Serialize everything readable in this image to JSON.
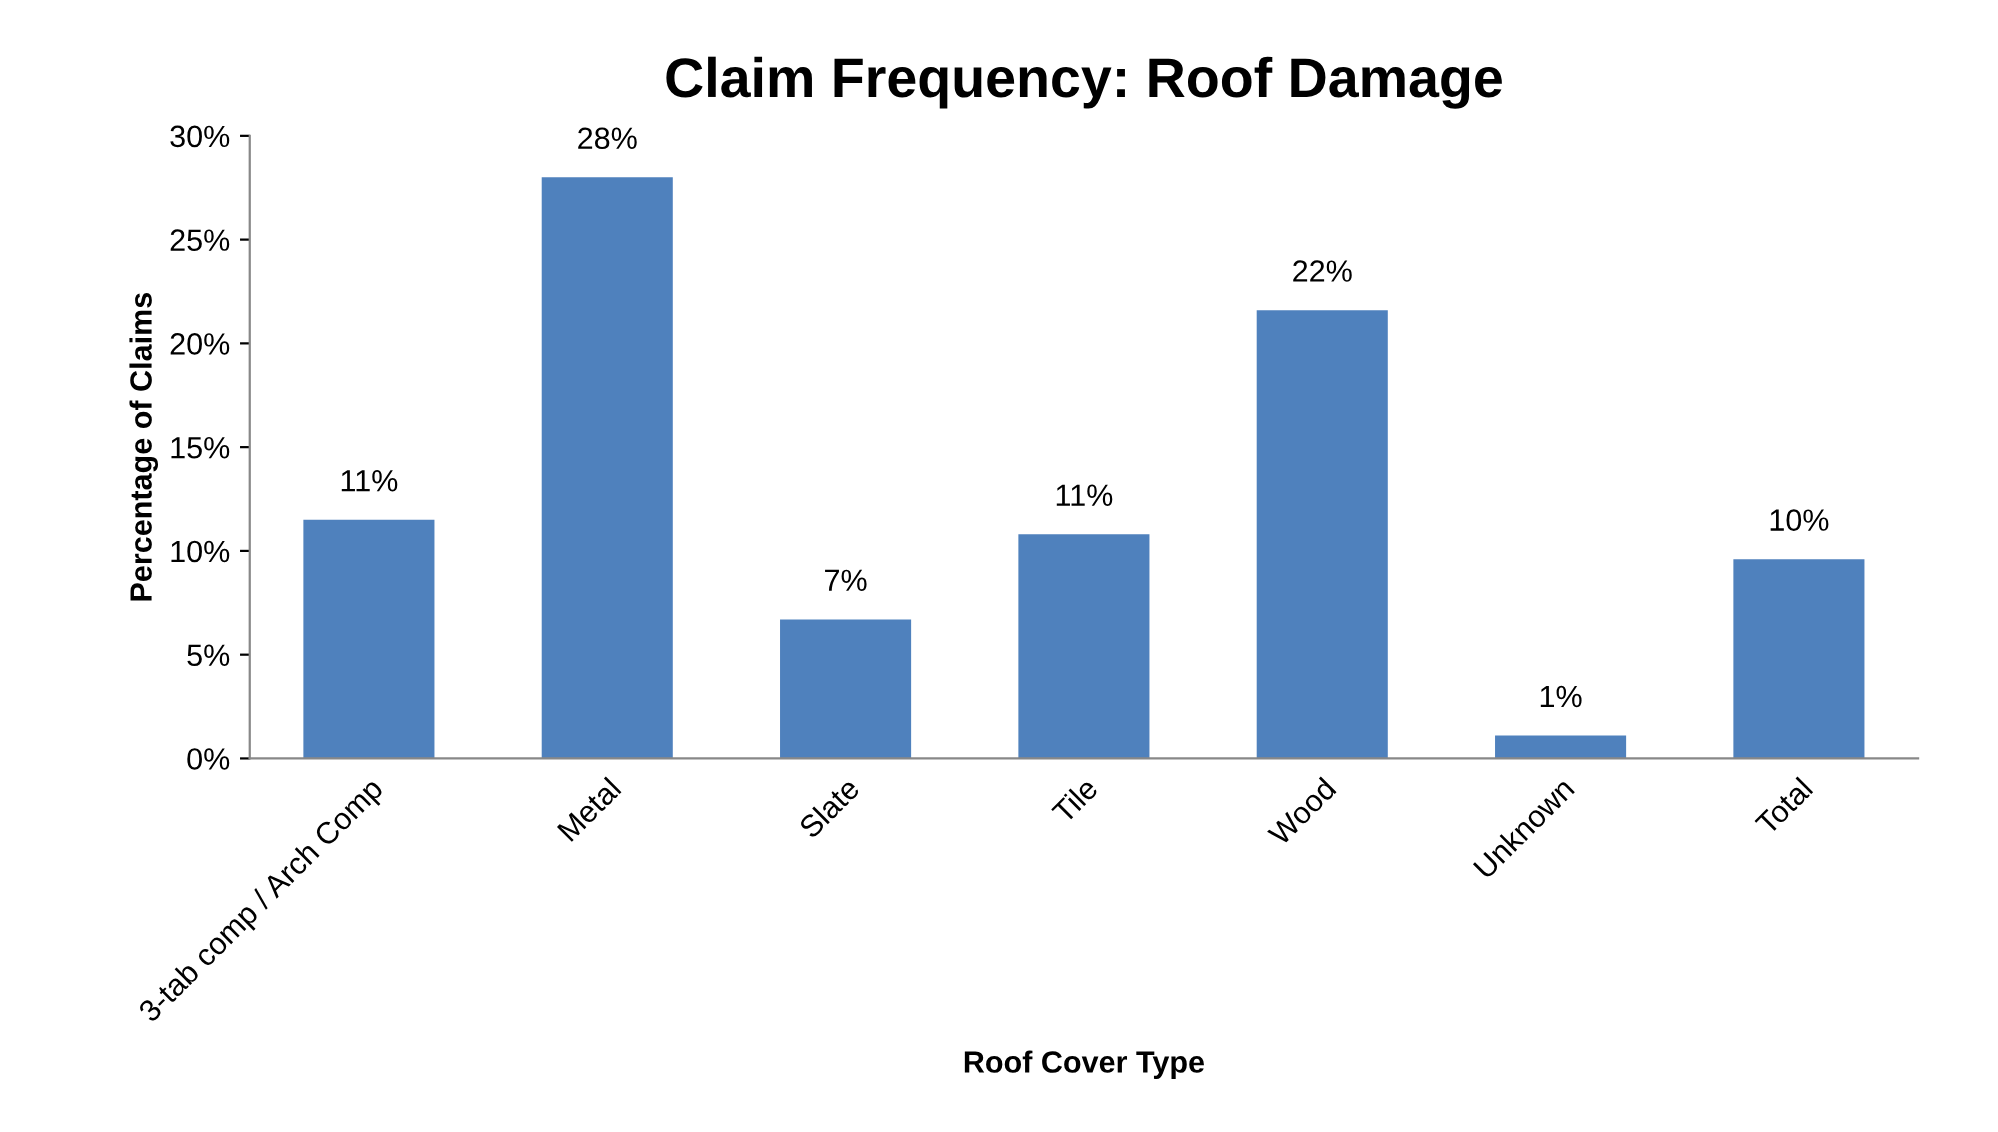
{
  "chart_data": {
    "type": "bar",
    "title": "Claim Frequency: Roof Damage",
    "xlabel": "Roof Cover Type",
    "ylabel": "Percentage of Claims",
    "categories": [
      "3-tab comp / Arch Comp",
      "Metal",
      "Slate",
      "Tile",
      "Wood",
      "Unknown",
      "Total"
    ],
    "values": [
      11.5,
      28,
      6.7,
      10.8,
      21.6,
      1.1,
      9.6
    ],
    "value_labels": [
      "11%",
      "28%",
      "7%",
      "11%",
      "22%",
      "1%",
      "10%"
    ],
    "color": "#4f81bd",
    "ylim": [
      0,
      30
    ],
    "yticks": [
      {
        "value": 0,
        "label": "0%"
      },
      {
        "value": 5,
        "label": "5%"
      },
      {
        "value": 10,
        "label": "10%"
      },
      {
        "value": 15,
        "label": "15%"
      },
      {
        "value": 20,
        "label": "20%"
      },
      {
        "value": 25,
        "label": "25%"
      },
      {
        "value": 30,
        "label": "30%"
      }
    ],
    "grid": false,
    "legend": false
  }
}
